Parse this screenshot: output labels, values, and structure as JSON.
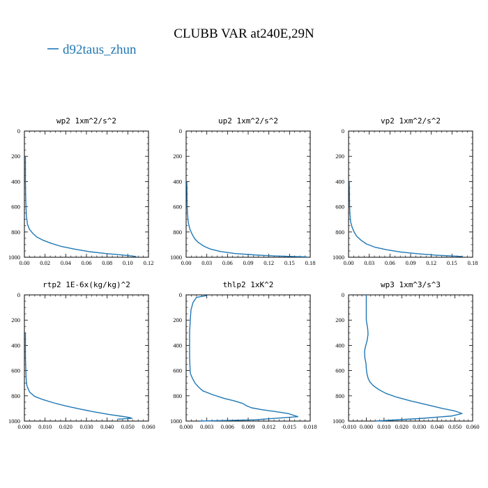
{
  "figure": {
    "title": "CLUBB VAR at240E,29N",
    "legend": {
      "label": "d92taus_zhun",
      "color": "#1f77b4"
    }
  },
  "chart_data": [
    {
      "type": "line",
      "title": "wp2  1xm^2/s^2",
      "xlim": [
        0,
        0.12
      ],
      "ylim": [
        1000,
        0
      ],
      "xticks": [
        "0.00",
        "0.02",
        "0.04",
        "0.06",
        "0.08",
        "0.10",
        "0.12"
      ],
      "yticks": [
        "0",
        "200",
        "400",
        "600",
        "800",
        "1000"
      ],
      "series": [
        {
          "name": "d92taus_zhun",
          "x": [
            0.001,
            0.001,
            0.0012,
            0.0015,
            0.002,
            0.003,
            0.005,
            0.008,
            0.012,
            0.018,
            0.026,
            0.036,
            0.048,
            0.062,
            0.078,
            0.094,
            0.104,
            0.108
          ],
          "y": [
            200,
            400,
            500,
            600,
            680,
            740,
            780,
            810,
            840,
            865,
            890,
            915,
            935,
            955,
            970,
            982,
            990,
            995
          ]
        }
      ]
    },
    {
      "type": "line",
      "title": "up2  1xm^2/s^2",
      "xlim": [
        0,
        0.18
      ],
      "ylim": [
        1000,
        0
      ],
      "xticks": [
        "0.00",
        "0.03",
        "0.06",
        "0.09",
        "0.12",
        "0.15",
        "0.18"
      ],
      "yticks": [
        "0",
        "200",
        "400",
        "600",
        "800",
        "1000"
      ],
      "series": [
        {
          "name": "d92taus_zhun",
          "x": [
            0.001,
            0.0015,
            0.002,
            0.003,
            0.005,
            0.008,
            0.012,
            0.017,
            0.025,
            0.035,
            0.05,
            0.07,
            0.1,
            0.13,
            0.16,
            0.175
          ],
          "y": [
            400,
            600,
            660,
            720,
            770,
            810,
            850,
            880,
            910,
            935,
            955,
            970,
            982,
            990,
            995,
            997
          ]
        }
      ]
    },
    {
      "type": "line",
      "title": "vp2  1xm^2/s^2",
      "xlim": [
        0,
        0.18
      ],
      "ylim": [
        1000,
        0
      ],
      "xticks": [
        "0.00",
        "0.03",
        "0.06",
        "0.09",
        "0.12",
        "0.15",
        "0.18"
      ],
      "yticks": [
        "0",
        "200",
        "400",
        "600",
        "800",
        "1000"
      ],
      "series": [
        {
          "name": "d92taus_zhun",
          "x": [
            0.001,
            0.0015,
            0.002,
            0.003,
            0.005,
            0.008,
            0.012,
            0.018,
            0.026,
            0.038,
            0.055,
            0.075,
            0.1,
            0.125,
            0.15,
            0.165
          ],
          "y": [
            400,
            600,
            660,
            720,
            760,
            800,
            835,
            865,
            895,
            920,
            940,
            958,
            972,
            983,
            990,
            994
          ]
        }
      ]
    },
    {
      "type": "line",
      "title": "rtp2  1E-6x(kg/kg)^2",
      "xlim": [
        0,
        0.06
      ],
      "ylim": [
        1000,
        0
      ],
      "xticks": [
        "0.000",
        "0.010",
        "0.020",
        "0.030",
        "0.040",
        "0.050",
        "0.060"
      ],
      "yticks": [
        "0",
        "200",
        "400",
        "600",
        "800",
        "1000"
      ],
      "series": [
        {
          "name": "d92taus_zhun",
          "x": [
            0.0005,
            0.0005,
            0.0008,
            0.0012,
            0.0025,
            0.005,
            0.009,
            0.014,
            0.02,
            0.027,
            0.034,
            0.041,
            0.047,
            0.051,
            0.052,
            0.045
          ],
          "y": [
            300,
            500,
            650,
            720,
            770,
            805,
            830,
            855,
            880,
            905,
            928,
            948,
            962,
            972,
            978,
            985
          ]
        }
      ]
    },
    {
      "type": "line",
      "title": "thlp2  1xK^2",
      "xlim": [
        0,
        0.018
      ],
      "ylim": [
        1000,
        0
      ],
      "xticks": [
        "0.000",
        "0.003",
        "0.006",
        "0.009",
        "0.012",
        "0.015",
        "0.018"
      ],
      "yticks": [
        "0",
        "200",
        "400",
        "600",
        "800",
        "1000"
      ],
      "series": [
        {
          "name": "d92taus_zhun",
          "x": [
            0.003,
            0.0025,
            0.0015,
            0.001,
            0.0007,
            0.0006,
            0.0005,
            0.0005,
            0.0005,
            0.0006,
            0.0009,
            0.0013,
            0.0018,
            0.0024,
            0.0038,
            0.0055,
            0.007,
            0.0082,
            0.0088,
            0.0095,
            0.011,
            0.013,
            0.0148,
            0.0162,
            0.01,
            0.002
          ],
          "y": [
            5,
            10,
            20,
            60,
            120,
            200,
            300,
            400,
            500,
            620,
            660,
            700,
            730,
            760,
            790,
            820,
            840,
            860,
            880,
            895,
            910,
            925,
            940,
            965,
            990,
            1000
          ]
        }
      ]
    },
    {
      "type": "line",
      "title": "wp3  1xm^3/s^3",
      "xlim": [
        -0.01,
        0.06
      ],
      "ylim": [
        1000,
        0
      ],
      "xticks": [
        "-0.010",
        "0.000",
        "0.010",
        "0.020",
        "0.030",
        "0.040",
        "0.050",
        "0.060"
      ],
      "yticks": [
        "0",
        "200",
        "400",
        "600",
        "800",
        "1000"
      ],
      "series": [
        {
          "name": "d92taus_zhun",
          "x": [
            0.0,
            0.0,
            0.0,
            0.0008,
            0.001,
            0.0005,
            -0.0005,
            -0.001,
            -0.0008,
            -0.0002,
            0.0,
            0.0003,
            0.001,
            0.002,
            0.004,
            0.007,
            0.011,
            0.017,
            0.025,
            0.034,
            0.043,
            0.05,
            0.054,
            0.048,
            0.03,
            0.005
          ],
          "y": [
            0,
            100,
            200,
            270,
            310,
            360,
            410,
            450,
            500,
            540,
            580,
            620,
            660,
            690,
            720,
            750,
            780,
            810,
            840,
            870,
            900,
            920,
            940,
            960,
            980,
            1000
          ]
        }
      ]
    }
  ]
}
